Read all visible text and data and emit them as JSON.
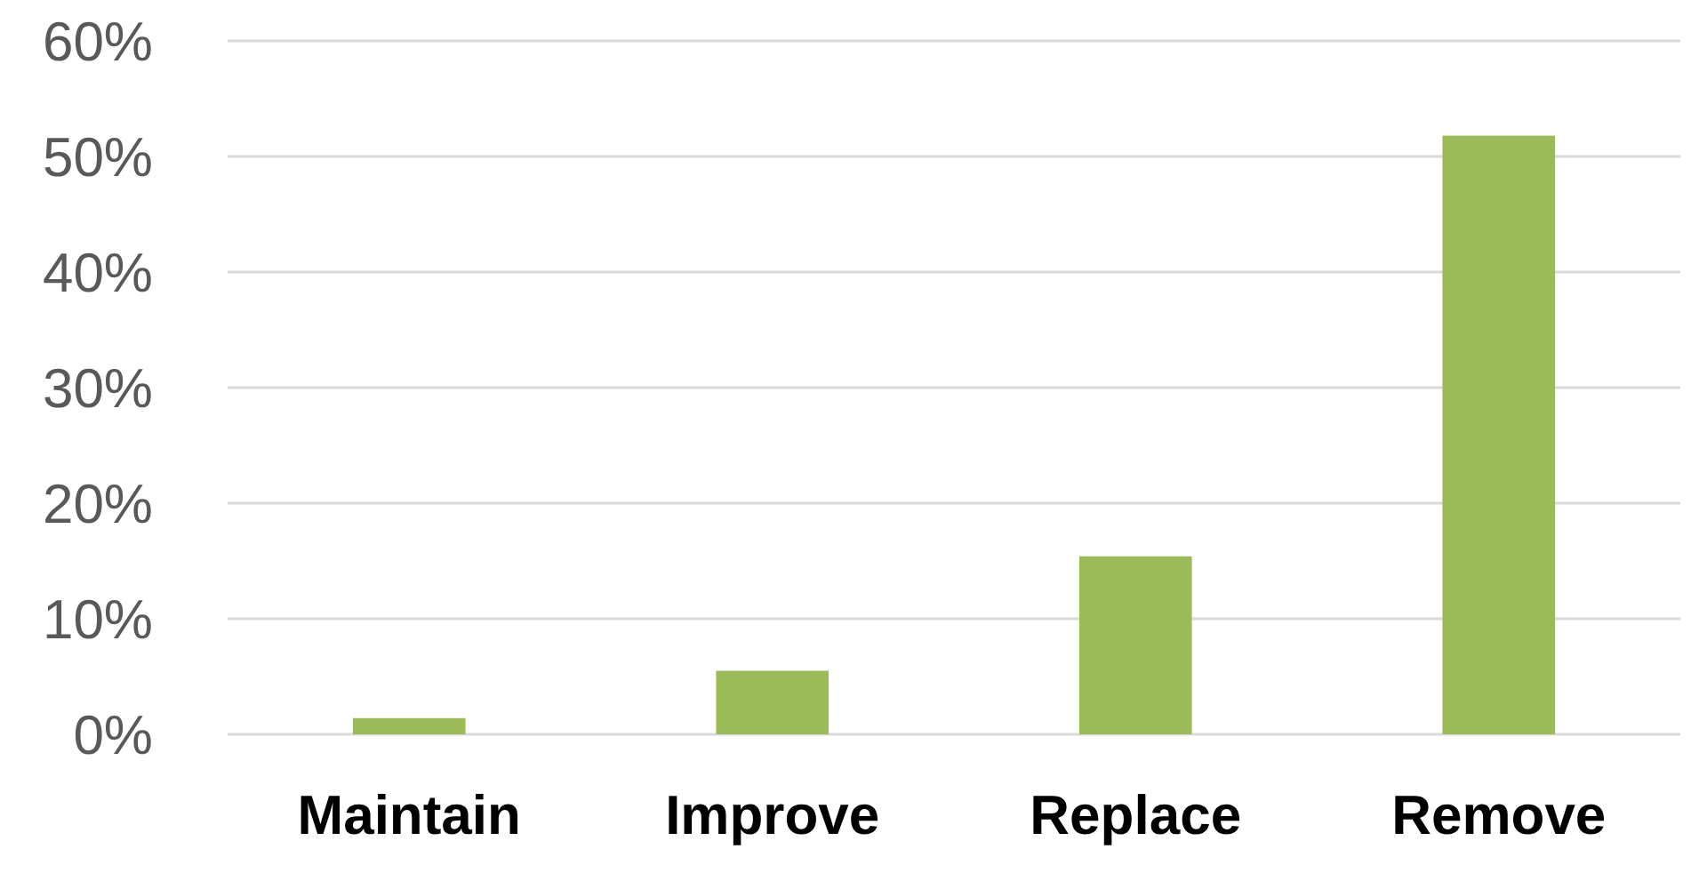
{
  "chart_data": {
    "type": "bar",
    "categories": [
      "Maintain",
      "Improve",
      "Replace",
      "Remove"
    ],
    "values": [
      1.4,
      5.5,
      15.4,
      51.8
    ],
    "color": "#9bbb59",
    "ylim": [
      0,
      60
    ],
    "yticks": [
      {
        "value": 0,
        "label": "0%"
      },
      {
        "value": 10,
        "label": "10%"
      },
      {
        "value": 20,
        "label": "20%"
      },
      {
        "value": 30,
        "label": "30%"
      },
      {
        "value": 40,
        "label": "40%"
      },
      {
        "value": 50,
        "label": "50%"
      },
      {
        "value": 60,
        "label": "60%"
      }
    ],
    "grid": "y"
  }
}
